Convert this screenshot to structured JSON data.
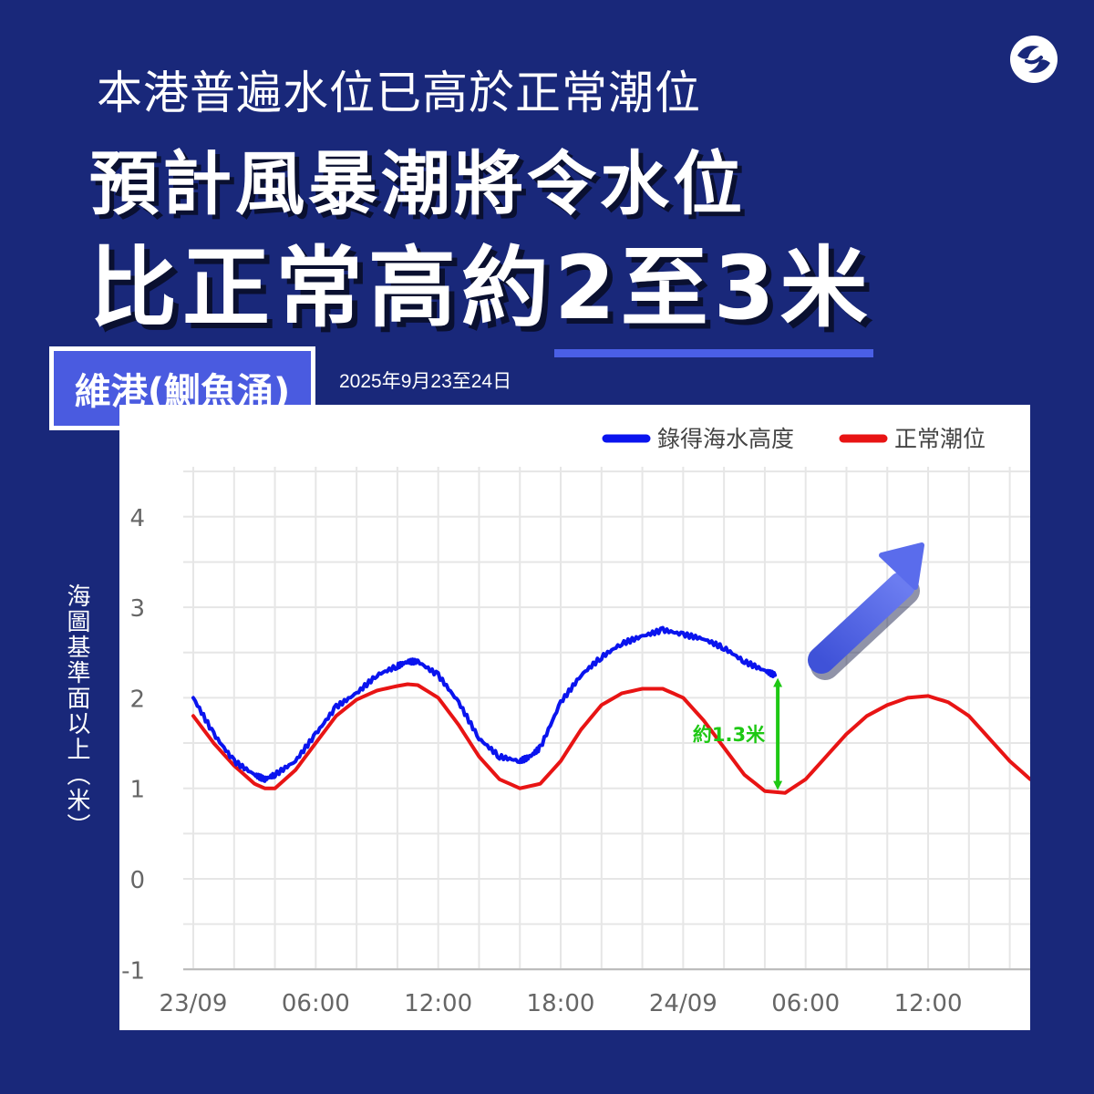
{
  "header": {
    "subtitle": "本港普遍水位已高於正常潮位",
    "headline_line1": "預計風暴潮將令水位",
    "headline_line2_prefix": "比正常高約",
    "headline_line2_highlight": "2至3米"
  },
  "logo": {
    "icon": "government-logo-icon"
  },
  "station": {
    "label": "維港(鰂魚涌)"
  },
  "date_range": "2025年9月23至24日",
  "colors": {
    "background": "#19287a",
    "recorded": "#0a14ee",
    "normal": "#e81414",
    "annotation": "#1ec814",
    "arrow": "#4a5be0"
  },
  "chart_data": {
    "type": "line",
    "title": "",
    "ylabel": "海圖基準面以上（米）",
    "xlabel": "",
    "ylim": [
      -1,
      4.5
    ],
    "yticks": [
      -1,
      0,
      1,
      2,
      3,
      4
    ],
    "xlim": [
      0,
      41
    ],
    "xtick_labels": [
      "23/09",
      "06:00",
      "12:00",
      "18:00",
      "24/09",
      "06:00",
      "12:00"
    ],
    "xtick_hours": [
      0,
      6,
      12,
      18,
      24,
      30,
      36
    ],
    "legend_position": "top-right",
    "grid": true,
    "series": [
      {
        "name": "錄得海水高度",
        "x": [
          0,
          1,
          2,
          3,
          3.5,
          4,
          5,
          6,
          7,
          8,
          9,
          10,
          10.5,
          11,
          12,
          13,
          14,
          15,
          16,
          16.5,
          17,
          18,
          19,
          20,
          21,
          22,
          23,
          24,
          25,
          26,
          27,
          28,
          28.5
        ],
        "y": [
          2.0,
          1.6,
          1.3,
          1.15,
          1.1,
          1.15,
          1.3,
          1.6,
          1.9,
          2.05,
          2.25,
          2.35,
          2.4,
          2.4,
          2.25,
          1.95,
          1.55,
          1.35,
          1.3,
          1.35,
          1.45,
          1.95,
          2.25,
          2.45,
          2.6,
          2.68,
          2.75,
          2.7,
          2.65,
          2.55,
          2.4,
          2.3,
          2.25
        ]
      },
      {
        "name": "正常潮位",
        "x": [
          0,
          1,
          2,
          3,
          3.5,
          4,
          5,
          6,
          7,
          8,
          9,
          10,
          10.5,
          11,
          12,
          13,
          14,
          15,
          16,
          17,
          18,
          19,
          20,
          21,
          22,
          23,
          24,
          25,
          26,
          27,
          28,
          29,
          30,
          31,
          32,
          33,
          34,
          35,
          36,
          37,
          38,
          39,
          40,
          41
        ],
        "y": [
          1.8,
          1.5,
          1.25,
          1.05,
          1.0,
          1.0,
          1.2,
          1.5,
          1.8,
          1.98,
          2.08,
          2.13,
          2.15,
          2.14,
          2.0,
          1.7,
          1.35,
          1.1,
          1.0,
          1.05,
          1.3,
          1.65,
          1.92,
          2.05,
          2.1,
          2.1,
          2.0,
          1.75,
          1.45,
          1.15,
          0.97,
          0.95,
          1.1,
          1.35,
          1.6,
          1.8,
          1.92,
          2.0,
          2.02,
          1.95,
          1.8,
          1.55,
          1.3,
          1.1
        ]
      }
    ],
    "annotation": {
      "label": "約1.3米",
      "x": 28.5,
      "y_from": 0.95,
      "y_to": 2.25
    }
  }
}
